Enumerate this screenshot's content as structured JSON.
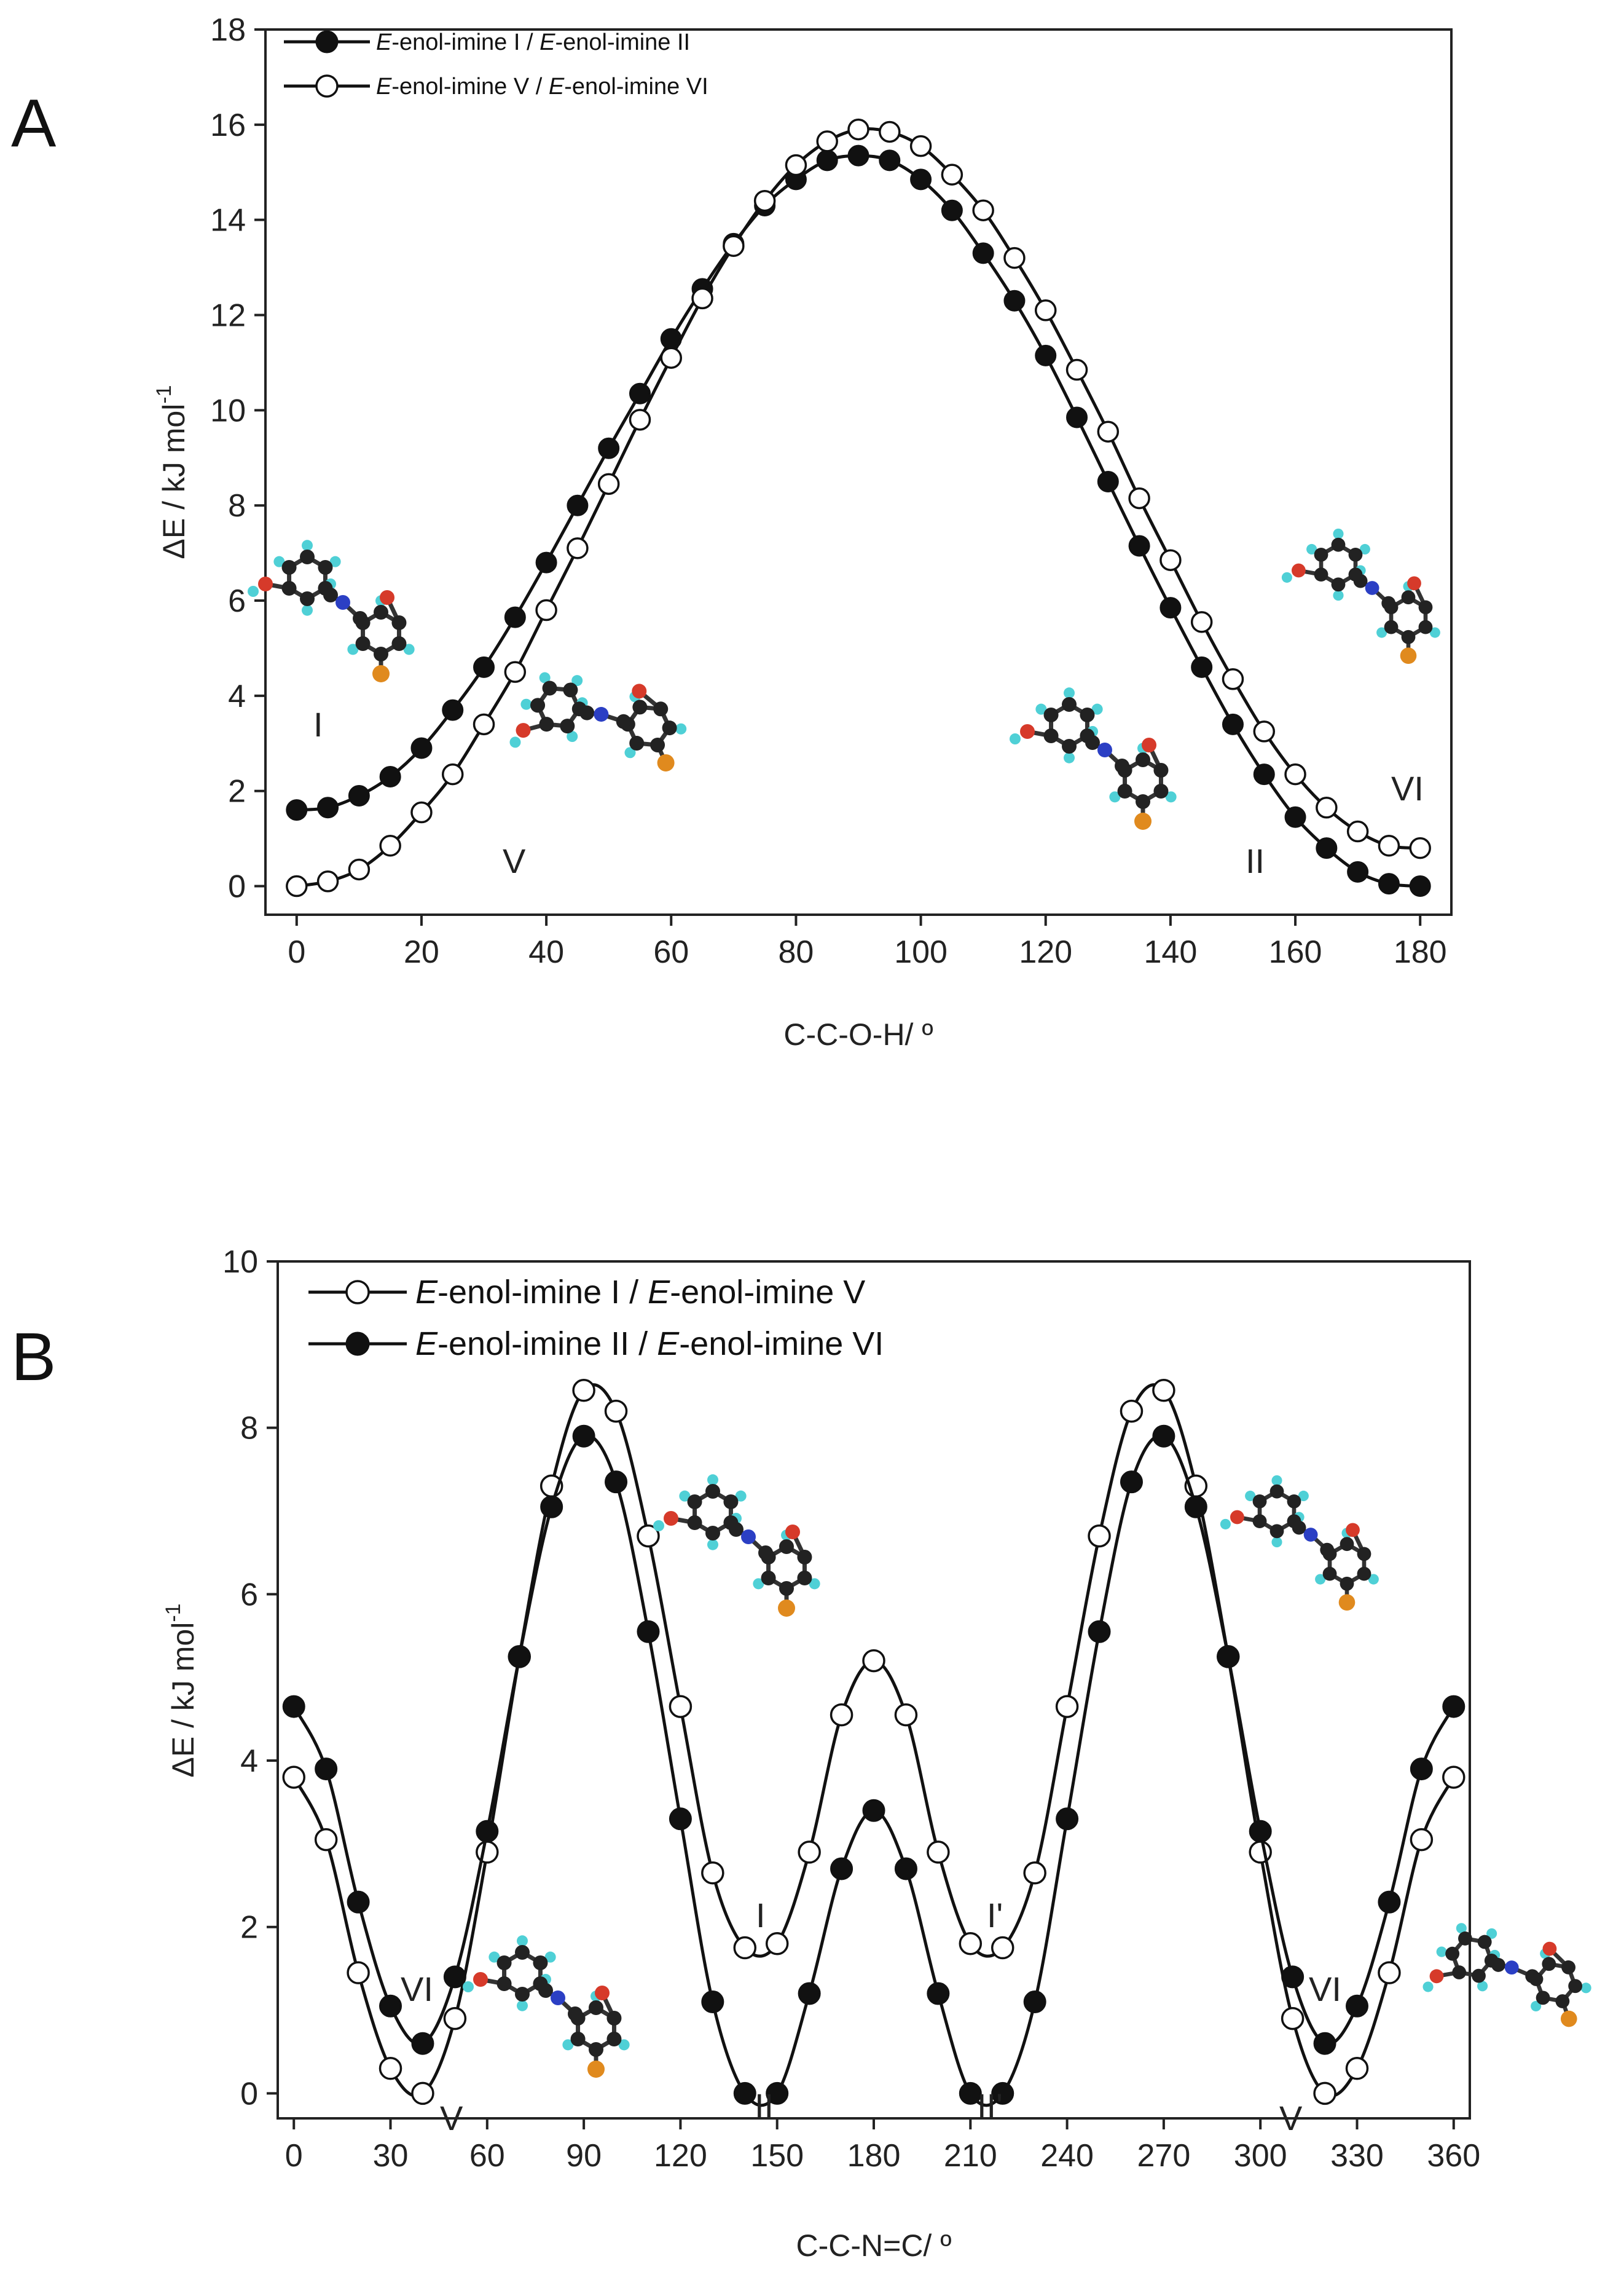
{
  "chart_data": [
    {
      "panel": "A",
      "type": "line",
      "title": "",
      "xlabel": "C-C-O-H/ º",
      "ylabel": "ΔE / kJ mol",
      "ylabel_superscript": "-1",
      "xlim": [
        -5,
        185
      ],
      "ylim": [
        -0.6,
        18
      ],
      "xticks": [
        0,
        20,
        40,
        60,
        80,
        100,
        120,
        140,
        160,
        180
      ],
      "yticks": [
        0,
        2,
        4,
        6,
        8,
        10,
        12,
        14,
        16,
        18
      ],
      "x": [
        0,
        5,
        10,
        15,
        20,
        25,
        30,
        35,
        40,
        45,
        50,
        55,
        60,
        65,
        70,
        75,
        80,
        85,
        90,
        95,
        100,
        105,
        110,
        115,
        120,
        125,
        130,
        135,
        140,
        145,
        150,
        155,
        160,
        165,
        170,
        175,
        180
      ],
      "series": [
        {
          "name": "E-enol-imine I / E-enol-imine II",
          "marker": "filled",
          "legend_parts": [
            "E",
            "-enol-imine I / ",
            "E",
            "-enol-imine II"
          ],
          "values": [
            1.6,
            1.65,
            1.9,
            2.3,
            2.9,
            3.7,
            4.6,
            5.65,
            6.8,
            8.0,
            9.2,
            10.35,
            11.5,
            12.55,
            13.5,
            14.3,
            14.85,
            15.25,
            15.35,
            15.25,
            14.85,
            14.2,
            13.3,
            12.3,
            11.15,
            9.85,
            8.5,
            7.15,
            5.85,
            4.6,
            3.4,
            2.35,
            1.45,
            0.8,
            0.3,
            0.05,
            0.0
          ]
        },
        {
          "name": "E-enol-imine V / E-enol-imine VI",
          "marker": "open",
          "legend_parts": [
            "E",
            "-enol-imine V / ",
            "E",
            "-enol-imine VI"
          ],
          "values": [
            0.0,
            0.1,
            0.35,
            0.85,
            1.55,
            2.35,
            3.4,
            4.5,
            5.8,
            7.1,
            8.45,
            9.8,
            11.1,
            12.35,
            13.45,
            14.4,
            15.15,
            15.65,
            15.9,
            15.85,
            15.55,
            14.95,
            14.2,
            13.2,
            12.1,
            10.85,
            9.55,
            8.15,
            6.85,
            5.55,
            4.35,
            3.25,
            2.35,
            1.65,
            1.15,
            0.85,
            0.8
          ]
        }
      ],
      "annotations": [
        "I",
        "V",
        "II",
        "VI"
      ]
    },
    {
      "panel": "B",
      "type": "line",
      "title": "",
      "xlabel": "C-C-N=C/ º",
      "ylabel": "ΔE / kJ mol",
      "ylabel_superscript": "-1",
      "xlim": [
        -5,
        365
      ],
      "ylim": [
        -0.3,
        10
      ],
      "xticks": [
        0,
        30,
        60,
        90,
        120,
        150,
        180,
        210,
        240,
        270,
        300,
        330,
        360
      ],
      "yticks": [
        0,
        2,
        4,
        6,
        8,
        10
      ],
      "series": [
        {
          "name": "E-enol-imine I / E-enol-imine V",
          "marker": "open",
          "legend_parts": [
            "E",
            "-enol-imine I / ",
            "E",
            "-enol-imine V"
          ],
          "x": [
            0,
            10,
            20,
            30,
            40,
            50,
            60,
            70,
            80,
            90,
            100,
            110,
            120,
            130,
            140,
            150,
            160,
            170,
            180,
            190,
            200,
            210,
            220,
            230,
            240,
            250,
            260,
            270,
            280,
            290,
            300,
            310,
            320,
            330,
            340,
            350,
            360
          ],
          "values": [
            3.8,
            3.05,
            1.45,
            0.3,
            0.0,
            0.9,
            2.9,
            5.25,
            7.3,
            8.45,
            8.2,
            6.7,
            4.65,
            2.65,
            1.75,
            1.8,
            2.9,
            4.55,
            5.2,
            4.55,
            2.9,
            1.8,
            1.75,
            2.65,
            4.65,
            6.7,
            8.2,
            8.45,
            7.3,
            5.25,
            2.9,
            0.9,
            0.0,
            0.3,
            1.45,
            3.05,
            3.8
          ]
        },
        {
          "name": "E-enol-imine II / E-enol-imine VI",
          "marker": "filled",
          "legend_parts": [
            "E",
            "-enol-imine II / ",
            "E",
            "-enol-imine VI"
          ],
          "x": [
            0,
            10,
            20,
            30,
            40,
            50,
            60,
            70,
            80,
            90,
            100,
            110,
            120,
            130,
            140,
            150,
            160,
            170,
            180,
            190,
            200,
            210,
            220,
            230,
            240,
            250,
            260,
            270,
            280,
            290,
            300,
            310,
            320,
            330,
            340,
            350,
            360
          ],
          "values": [
            4.65,
            3.9,
            2.3,
            1.05,
            0.6,
            1.4,
            3.15,
            5.25,
            7.05,
            7.9,
            7.35,
            5.55,
            3.3,
            1.1,
            0.0,
            0.0,
            1.2,
            2.7,
            3.4,
            2.7,
            1.2,
            0.0,
            0.0,
            1.1,
            3.3,
            5.55,
            7.35,
            7.9,
            7.05,
            5.25,
            3.15,
            1.4,
            0.6,
            1.05,
            2.3,
            3.9,
            4.65
          ]
        }
      ],
      "annotations": [
        "VI",
        "V",
        "I",
        "II",
        "I'",
        "II'",
        "VI",
        "V"
      ]
    }
  ]
}
